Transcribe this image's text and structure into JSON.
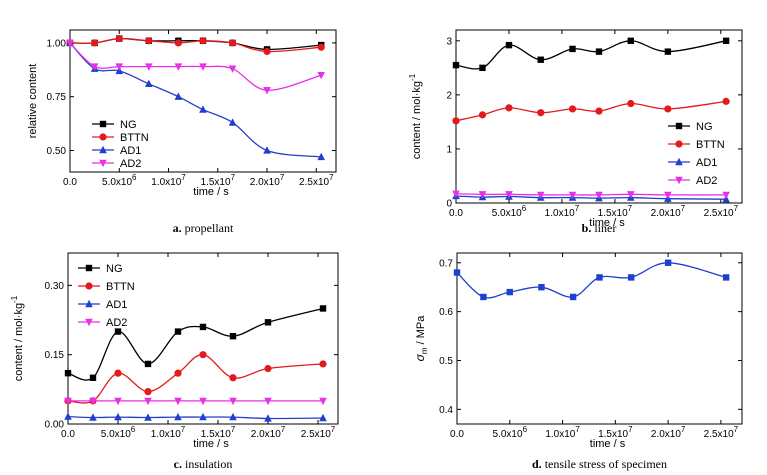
{
  "chart_data": [
    {
      "type": "line",
      "caption_letter": "a.",
      "caption_text": "propellant",
      "xlabel": "time / s",
      "ylabel": "relative content",
      "xlim": [
        0,
        27000000
      ],
      "ylim": [
        0.4,
        1.06
      ],
      "x_ticks": [
        0,
        5000000,
        10000000,
        15000000,
        20000000,
        25000000
      ],
      "x_tick_labels": [
        {
          "m": "0.0",
          "e": ""
        },
        {
          "m": "5.0x10",
          "e": "6"
        },
        {
          "m": "1.0x10",
          "e": "7"
        },
        {
          "m": "1.5x10",
          "e": "7"
        },
        {
          "m": "2.0x10",
          "e": "7"
        },
        {
          "m": "2.5x10",
          "e": "7"
        }
      ],
      "y_ticks": [
        0.5,
        0.75,
        1.0
      ],
      "y_tick_labels": [
        "0.50",
        "0.75",
        "1.00"
      ],
      "legend_position": "bottom-left",
      "series": [
        {
          "name": "NG",
          "color": "#000000",
          "marker": "square",
          "x": [
            0,
            2500000,
            5000000,
            8000000,
            11000000,
            13500000,
            16500000,
            20000000,
            25500000
          ],
          "y": [
            1.0,
            1.0,
            1.02,
            1.01,
            1.01,
            1.01,
            1.0,
            0.97,
            0.99
          ]
        },
        {
          "name": "BTTN",
          "color": "#e31a1c",
          "marker": "circle",
          "x": [
            0,
            2500000,
            5000000,
            8000000,
            11000000,
            13500000,
            16500000,
            20000000,
            25500000
          ],
          "y": [
            1.0,
            1.0,
            1.02,
            1.01,
            1.0,
            1.01,
            1.0,
            0.96,
            0.98
          ]
        },
        {
          "name": "AD1",
          "color": "#1f3fcf",
          "marker": "triangle-up",
          "x": [
            0,
            2500000,
            5000000,
            8000000,
            11000000,
            13500000,
            16500000,
            20000000,
            25500000
          ],
          "y": [
            1.0,
            0.88,
            0.87,
            0.81,
            0.75,
            0.69,
            0.63,
            0.5,
            0.47
          ]
        },
        {
          "name": "AD2",
          "color": "#e830e8",
          "marker": "triangle-down",
          "x": [
            0,
            2500000,
            5000000,
            8000000,
            11000000,
            13500000,
            16500000,
            20000000,
            25500000
          ],
          "y": [
            1.0,
            0.89,
            0.89,
            0.89,
            0.89,
            0.89,
            0.88,
            0.78,
            0.85
          ]
        }
      ]
    },
    {
      "type": "line",
      "caption_letter": "b.",
      "caption_text": "liner",
      "xlabel": "time / s",
      "ylabel": "content / mol·kg",
      "ylabel_exp": "-1",
      "xlim": [
        0,
        27000000
      ],
      "ylim": [
        0,
        3.2
      ],
      "x_ticks": [
        0,
        5000000,
        10000000,
        15000000,
        20000000,
        25000000
      ],
      "x_tick_labels": [
        {
          "m": "0.0",
          "e": ""
        },
        {
          "m": "5.0x10",
          "e": "6"
        },
        {
          "m": "1.0x10",
          "e": "7"
        },
        {
          "m": "1.5x10",
          "e": "7"
        },
        {
          "m": "2.0x10",
          "e": "7"
        },
        {
          "m": "2.5x10",
          "e": "7"
        }
      ],
      "y_ticks": [
        0,
        1,
        2,
        3
      ],
      "y_tick_labels": [
        "0",
        "1",
        "2",
        "3"
      ],
      "legend_position": "right-middle",
      "series": [
        {
          "name": "NG",
          "color": "#000000",
          "marker": "square",
          "x": [
            0,
            2500000,
            5000000,
            8000000,
            11000000,
            13500000,
            16500000,
            20000000,
            25500000
          ],
          "y": [
            2.55,
            2.5,
            2.92,
            2.65,
            2.85,
            2.8,
            3.0,
            2.8,
            3.0
          ]
        },
        {
          "name": "BTTN",
          "color": "#e31a1c",
          "marker": "circle",
          "x": [
            0,
            2500000,
            5000000,
            8000000,
            11000000,
            13500000,
            16500000,
            20000000,
            25500000
          ],
          "y": [
            1.52,
            1.63,
            1.76,
            1.67,
            1.74,
            1.7,
            1.84,
            1.74,
            1.88
          ]
        },
        {
          "name": "AD1",
          "color": "#1f3fcf",
          "marker": "triangle-up",
          "x": [
            0,
            2500000,
            5000000,
            8000000,
            11000000,
            13500000,
            16500000,
            20000000,
            25500000
          ],
          "y": [
            0.13,
            0.11,
            0.12,
            0.1,
            0.1,
            0.09,
            0.1,
            0.08,
            0.07
          ]
        },
        {
          "name": "AD2",
          "color": "#e830e8",
          "marker": "triangle-down",
          "x": [
            0,
            2500000,
            5000000,
            8000000,
            11000000,
            13500000,
            16500000,
            20000000,
            25500000
          ],
          "y": [
            0.17,
            0.16,
            0.16,
            0.15,
            0.15,
            0.15,
            0.16,
            0.15,
            0.15
          ]
        }
      ]
    },
    {
      "type": "line",
      "caption_letter": "c.",
      "caption_text": "insulation",
      "xlabel": "time / s",
      "ylabel": "content / mol·kg",
      "ylabel_exp": "-1",
      "xlim": [
        0,
        27000000
      ],
      "ylim": [
        0,
        0.37
      ],
      "x_ticks": [
        0,
        5000000,
        10000000,
        15000000,
        20000000,
        25000000
      ],
      "x_tick_labels": [
        {
          "m": "0.0",
          "e": ""
        },
        {
          "m": "5.0x10",
          "e": "6"
        },
        {
          "m": "1.0x10",
          "e": "7"
        },
        {
          "m": "1.5x10",
          "e": "7"
        },
        {
          "m": "2.0x10",
          "e": "7"
        },
        {
          "m": "2.5x10",
          "e": "7"
        }
      ],
      "y_ticks": [
        0,
        0.15,
        0.3
      ],
      "y_tick_labels": [
        "0.00",
        "0.15",
        "0.30"
      ],
      "legend_position": "top-left",
      "series": [
        {
          "name": "NG",
          "color": "#000000",
          "marker": "square",
          "x": [
            0,
            2500000,
            5000000,
            8000000,
            11000000,
            13500000,
            16500000,
            20000000,
            25500000
          ],
          "y": [
            0.11,
            0.1,
            0.2,
            0.13,
            0.2,
            0.21,
            0.19,
            0.22,
            0.25
          ]
        },
        {
          "name": "BTTN",
          "color": "#e31a1c",
          "marker": "circle",
          "x": [
            0,
            2500000,
            5000000,
            8000000,
            11000000,
            13500000,
            16500000,
            20000000,
            25500000
          ],
          "y": [
            0.05,
            0.05,
            0.11,
            0.07,
            0.11,
            0.15,
            0.1,
            0.12,
            0.13
          ]
        },
        {
          "name": "AD1",
          "color": "#1f3fcf",
          "marker": "triangle-up",
          "x": [
            0,
            2500000,
            5000000,
            8000000,
            11000000,
            13500000,
            16500000,
            20000000,
            25500000
          ],
          "y": [
            0.016,
            0.014,
            0.015,
            0.014,
            0.015,
            0.015,
            0.015,
            0.012,
            0.013
          ]
        },
        {
          "name": "AD2",
          "color": "#e830e8",
          "marker": "triangle-down",
          "x": [
            0,
            2500000,
            5000000,
            8000000,
            11000000,
            13500000,
            16500000,
            20000000,
            25500000
          ],
          "y": [
            0.05,
            0.05,
            0.05,
            0.05,
            0.05,
            0.05,
            0.05,
            0.05,
            0.05
          ]
        }
      ]
    },
    {
      "type": "line",
      "caption_letter": "d.",
      "caption_text": "tensile stress of specimen",
      "xlabel": "time / s",
      "ylabel_sym": "σ",
      "ylabel_sub": "m",
      "ylabel": " / MPa",
      "xlim": [
        0,
        27000000
      ],
      "ylim": [
        0.37,
        0.72
      ],
      "x_ticks": [
        0,
        5000000,
        10000000,
        15000000,
        20000000,
        25000000
      ],
      "x_tick_labels": [
        {
          "m": "0.0",
          "e": ""
        },
        {
          "m": "5.0x10",
          "e": "6"
        },
        {
          "m": "1.0x10",
          "e": "7"
        },
        {
          "m": "1.5x10",
          "e": "7"
        },
        {
          "m": "2.0x10",
          "e": "7"
        },
        {
          "m": "2.5x10",
          "e": "7"
        }
      ],
      "y_ticks": [
        0.4,
        0.5,
        0.6,
        0.7
      ],
      "y_tick_labels": [
        "0.4",
        "0.5",
        "0.6",
        "0.7"
      ],
      "legend_position": "none",
      "series": [
        {
          "color": "#1f3fcf",
          "marker": "square",
          "x": [
            0,
            2500000,
            5000000,
            8000000,
            11000000,
            13500000,
            16500000,
            20000000,
            25500000
          ],
          "y": [
            0.68,
            0.63,
            0.64,
            0.65,
            0.63,
            0.67,
            0.67,
            0.7,
            0.67
          ]
        }
      ]
    }
  ]
}
